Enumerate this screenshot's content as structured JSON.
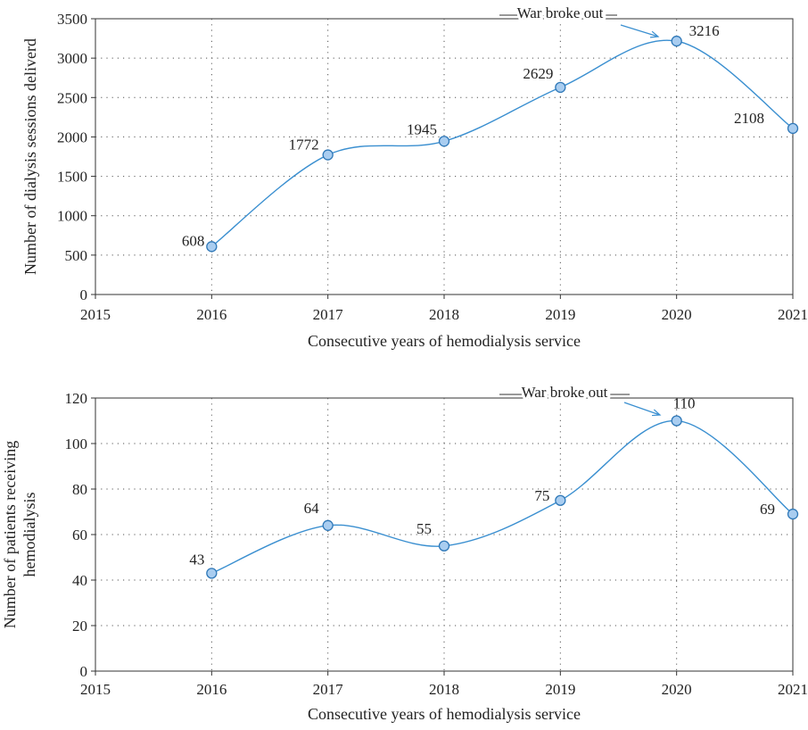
{
  "colors": {
    "line": "#3a8fd0",
    "marker_fill": "#a9cdf0",
    "marker_stroke": "#2f78b8",
    "grid": "#555555",
    "axis": "#333333",
    "text": "#222222"
  },
  "chart_data": [
    {
      "type": "line",
      "x": [
        2016,
        2017,
        2018,
        2019,
        2020,
        2021
      ],
      "values": [
        608,
        1772,
        1945,
        2629,
        3216,
        2108
      ],
      "data_labels": [
        "608",
        "1772",
        "1945",
        "2629",
        "3216",
        "2108"
      ],
      "title": "",
      "xlabel": "Consecutive years of hemodialysis service",
      "ylabel": [
        "Number of dialysis sessions deliverd"
      ],
      "xlim": [
        2015,
        2021
      ],
      "ylim": [
        0,
        3500
      ],
      "xticks": [
        2015,
        2016,
        2017,
        2018,
        2019,
        2020,
        2021
      ],
      "xtick_labels": [
        "2015",
        "2016",
        "2017",
        "2018",
        "2019",
        "2020",
        "2021"
      ],
      "yticks": [
        0,
        500,
        1000,
        1500,
        2000,
        2500,
        3000,
        3500
      ],
      "ytick_labels": [
        "0",
        "500",
        "1000",
        "1500",
        "2000",
        "2500",
        "3000",
        "3500"
      ],
      "grid": "dotted",
      "annotation": {
        "text": "War broke out",
        "x": 2020,
        "y": 3216
      }
    },
    {
      "type": "line",
      "x": [
        2016,
        2017,
        2018,
        2019,
        2020,
        2021
      ],
      "values": [
        43,
        64,
        55,
        75,
        110,
        69
      ],
      "data_labels": [
        "43",
        "64",
        "55",
        "75",
        "110",
        "69"
      ],
      "title": "",
      "xlabel": "Consecutive years of hemodialysis service",
      "ylabel": [
        "Number of patients receiving",
        "hemodialysis"
      ],
      "xlim": [
        2015,
        2021
      ],
      "ylim": [
        0,
        120
      ],
      "xticks": [
        2015,
        2016,
        2017,
        2018,
        2019,
        2020,
        2021
      ],
      "xtick_labels": [
        "2015",
        "2016",
        "2017",
        "2018",
        "2019",
        "2020",
        "2021"
      ],
      "yticks": [
        0,
        20,
        40,
        60,
        80,
        100,
        120
      ],
      "ytick_labels": [
        "0",
        "20",
        "40",
        "60",
        "80",
        "100",
        "120"
      ],
      "grid": "dotted",
      "annotation": {
        "text": "War broke out",
        "x": 2020,
        "y": 110
      }
    }
  ]
}
